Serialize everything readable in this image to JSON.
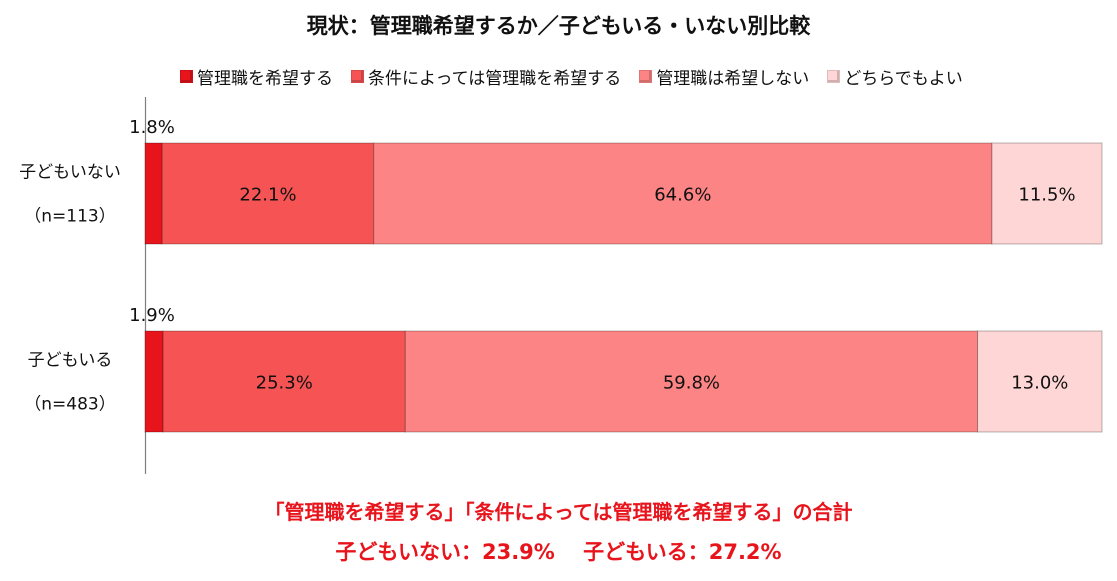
{
  "chart_data": {
    "type": "bar",
    "orientation": "horizontal",
    "stacked": true,
    "percent_stacked": true,
    "title": "現状：管理職希望するか／子どもいる・いない別比較",
    "categories": [
      {
        "name": "子どもいない",
        "n": "（n=113）"
      },
      {
        "name": "子どもいる",
        "n": "（n=483）"
      }
    ],
    "series": [
      {
        "name": "管理職を希望する",
        "color": "#e8141c",
        "values": [
          1.8,
          1.9
        ],
        "labels": [
          "1.8%",
          "1.9%"
        ]
      },
      {
        "name": "条件によっては管理職を希望する",
        "color": "#f65454",
        "values": [
          22.1,
          25.3
        ],
        "labels": [
          "22.1%",
          "25.3%"
        ]
      },
      {
        "name": "管理職は希望しない",
        "color": "#fd8484",
        "values": [
          64.6,
          59.8
        ],
        "labels": [
          "64.6%",
          "59.8%"
        ]
      },
      {
        "name": "どちらでもよい",
        "color": "#fed6d6",
        "values": [
          11.5,
          13.0
        ],
        "labels": [
          "11.5%",
          "13.0%"
        ]
      }
    ],
    "xlim": [
      0,
      100
    ],
    "legend_position": "top",
    "grid": false
  },
  "summary": {
    "line1": "「管理職を希望する」「条件によっては管理職を希望する」の合計",
    "line2": "子どもいない：23.9%　 子どもいる：27.2%"
  }
}
